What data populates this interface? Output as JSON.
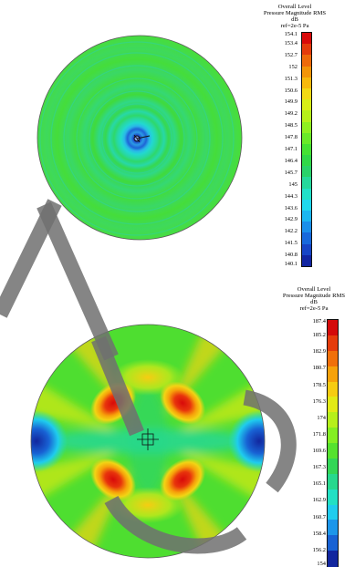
{
  "top_plot": {
    "legend": {
      "line1": "Overall Level",
      "line2": "Pressure Magnitude RMS",
      "line3": "dB",
      "line4": "ref=2e-5 Pa"
    },
    "ticks": [
      "154.1",
      "153.4",
      "152.7",
      "152",
      "151.3",
      "150.6",
      "149.9",
      "149.2",
      "148.5",
      "147.8",
      "147.1",
      "146.4",
      "145.7",
      "145",
      "144.3",
      "143.6",
      "142.9",
      "142.2",
      "141.5",
      "140.8",
      "140.1"
    ],
    "colors": [
      "#d80a0a",
      "#e43b0c",
      "#ee6a0a",
      "#f39508",
      "#f7b90c",
      "#f2da14",
      "#d8ee16",
      "#b6f01a",
      "#8ff020",
      "#69ea28",
      "#45e233",
      "#30d848",
      "#29d26a",
      "#25d99c",
      "#21e1c8",
      "#1fd8ee",
      "#1cb6f0",
      "#1b8fea",
      "#1869dc",
      "#1745c6",
      "#1225a2"
    ]
  },
  "bottom_plot": {
    "legend": {
      "line1": "Overall Level",
      "line2": "Pressure Magnitude RMS",
      "line3": "dB",
      "line4": "ref=2e-5 Pa"
    },
    "ticks": [
      "187.4",
      "185.2",
      "182.9",
      "180.7",
      "178.5",
      "176.3",
      "174",
      "171.8",
      "169.6",
      "167.3",
      "165.1",
      "162.9",
      "160.7",
      "158.4",
      "156.2",
      "154"
    ],
    "colors": [
      "#d40a0a",
      "#e53c0c",
      "#f0700a",
      "#f6a20a",
      "#f6cc12",
      "#e2ea16",
      "#b6f01b",
      "#84ee22",
      "#55e22e",
      "#33d656",
      "#27d88e",
      "#22e0c4",
      "#1fccee",
      "#1c96ea",
      "#1862d4",
      "#12269e"
    ]
  }
}
